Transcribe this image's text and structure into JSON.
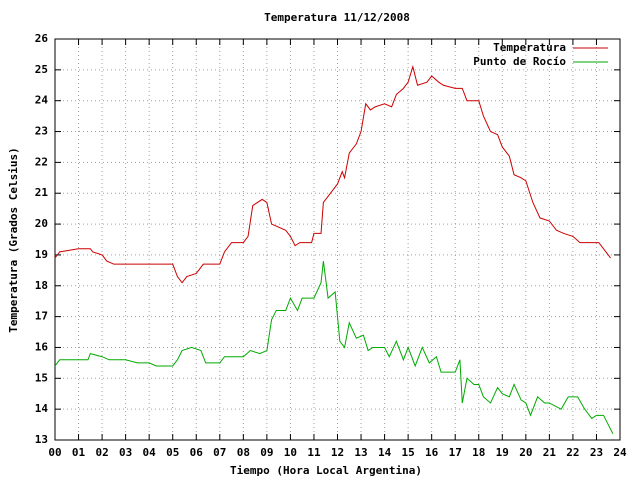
{
  "chart_data": {
    "type": "line",
    "title": "Temperatura 11/12/2008",
    "x_label": "Tiempo (Hora Local Argentina)",
    "y_label": "Temperatura (Grados Celsius)",
    "xlim": [
      0,
      24
    ],
    "ylim": [
      13,
      26
    ],
    "xticks": [
      {
        "value": 0,
        "label": "00"
      },
      {
        "value": 1,
        "label": "01"
      },
      {
        "value": 2,
        "label": "02"
      },
      {
        "value": 3,
        "label": "03"
      },
      {
        "value": 4,
        "label": "04"
      },
      {
        "value": 5,
        "label": "05"
      },
      {
        "value": 6,
        "label": "06"
      },
      {
        "value": 7,
        "label": "07"
      },
      {
        "value": 8,
        "label": "08"
      },
      {
        "value": 9,
        "label": "09"
      },
      10,
      11,
      12,
      13,
      14,
      15,
      16,
      17,
      18,
      19,
      20,
      21,
      22,
      23,
      24
    ],
    "yticks": [
      13,
      14,
      15,
      16,
      17,
      18,
      19,
      20,
      21,
      22,
      23,
      24,
      25,
      26
    ],
    "grid": true,
    "legend": "top-right",
    "series": [
      {
        "name": "Temperatura",
        "color": "#cc0000",
        "x": [
          0,
          0.2,
          1.0,
          1.5,
          1.6,
          2.0,
          2.2,
          2.5,
          5.0,
          5.2,
          5.4,
          5.6,
          6.0,
          6.3,
          7.0,
          7.2,
          7.5,
          8.0,
          8.2,
          8.4,
          8.8,
          9.0,
          9.2,
          9.8,
          10.0,
          10.2,
          10.4,
          10.9,
          11.0,
          11.3,
          11.4,
          11.8,
          12.0,
          12.2,
          12.3,
          12.5,
          12.8,
          13.0,
          13.2,
          13.4,
          13.6,
          14.0,
          14.3,
          14.5,
          14.8,
          15.0,
          15.2,
          15.4,
          15.8,
          16.0,
          16.3,
          16.5,
          17.0,
          17.3,
          17.5,
          17.8,
          18.0,
          18.2,
          18.5,
          18.8,
          19.0,
          19.3,
          19.5,
          19.8,
          20.0,
          20.3,
          20.6,
          21.0,
          21.3,
          21.6,
          22.0,
          22.3,
          22.8,
          23.1,
          23.4,
          23.6
        ],
        "values": [
          18.9,
          19.1,
          19.2,
          19.2,
          19.1,
          19.0,
          18.8,
          18.7,
          18.7,
          18.3,
          18.1,
          18.3,
          18.4,
          18.7,
          18.7,
          19.1,
          19.4,
          19.4,
          19.6,
          20.6,
          20.8,
          20.7,
          20.0,
          19.8,
          19.6,
          19.3,
          19.4,
          19.4,
          19.7,
          19.7,
          20.7,
          21.1,
          21.3,
          21.7,
          21.5,
          22.3,
          22.6,
          23.0,
          23.9,
          23.7,
          23.8,
          23.9,
          23.8,
          24.2,
          24.4,
          24.6,
          25.1,
          24.5,
          24.6,
          24.8,
          24.6,
          24.5,
          24.4,
          24.4,
          24.0,
          24.0,
          24.0,
          23.5,
          23.0,
          22.9,
          22.5,
          22.2,
          21.6,
          21.5,
          21.4,
          20.7,
          20.2,
          20.1,
          19.8,
          19.7,
          19.6,
          19.4,
          19.4,
          19.4,
          19.1,
          18.9
        ]
      },
      {
        "name": "Punto de Rocío",
        "color": "#00aa00",
        "x": [
          0,
          0.2,
          1.0,
          1.4,
          1.5,
          2.0,
          2.3,
          3.0,
          3.5,
          4.0,
          4.3,
          5.0,
          5.2,
          5.4,
          5.8,
          6.2,
          6.4,
          7.0,
          7.2,
          7.5,
          8.0,
          8.3,
          8.7,
          9.0,
          9.2,
          9.4,
          9.8,
          10.0,
          10.3,
          10.5,
          11.0,
          11.3,
          11.4,
          11.6,
          11.9,
          12.1,
          12.3,
          12.5,
          12.8,
          13.1,
          13.3,
          13.5,
          14.0,
          14.2,
          14.5,
          14.8,
          15.0,
          15.3,
          15.6,
          15.9,
          16.2,
          16.4,
          16.8,
          17.0,
          17.2,
          17.3,
          17.5,
          17.8,
          18.0,
          18.2,
          18.5,
          18.8,
          19.0,
          19.3,
          19.5,
          19.8,
          20.0,
          20.2,
          20.5,
          20.8,
          21.0,
          21.5,
          21.8,
          22.2,
          22.5,
          22.8,
          23.0,
          23.3,
          23.5,
          23.7
        ],
        "values": [
          15.4,
          15.6,
          15.6,
          15.6,
          15.8,
          15.7,
          15.6,
          15.6,
          15.5,
          15.5,
          15.4,
          15.4,
          15.6,
          15.9,
          16.0,
          15.9,
          15.5,
          15.5,
          15.7,
          15.7,
          15.7,
          15.9,
          15.8,
          15.9,
          16.9,
          17.2,
          17.2,
          17.6,
          17.2,
          17.6,
          17.6,
          18.1,
          18.8,
          17.6,
          17.8,
          16.2,
          16.0,
          16.8,
          16.3,
          16.4,
          15.9,
          16.0,
          16.0,
          15.7,
          16.2,
          15.6,
          16.0,
          15.4,
          16.0,
          15.5,
          15.7,
          15.2,
          15.2,
          15.2,
          15.6,
          14.2,
          15.0,
          14.8,
          14.8,
          14.4,
          14.2,
          14.7,
          14.5,
          14.4,
          14.8,
          14.3,
          14.2,
          13.8,
          14.4,
          14.2,
          14.2,
          14.0,
          14.4,
          14.4,
          14.0,
          13.7,
          13.8,
          13.8,
          13.5,
          13.2
        ]
      }
    ]
  }
}
